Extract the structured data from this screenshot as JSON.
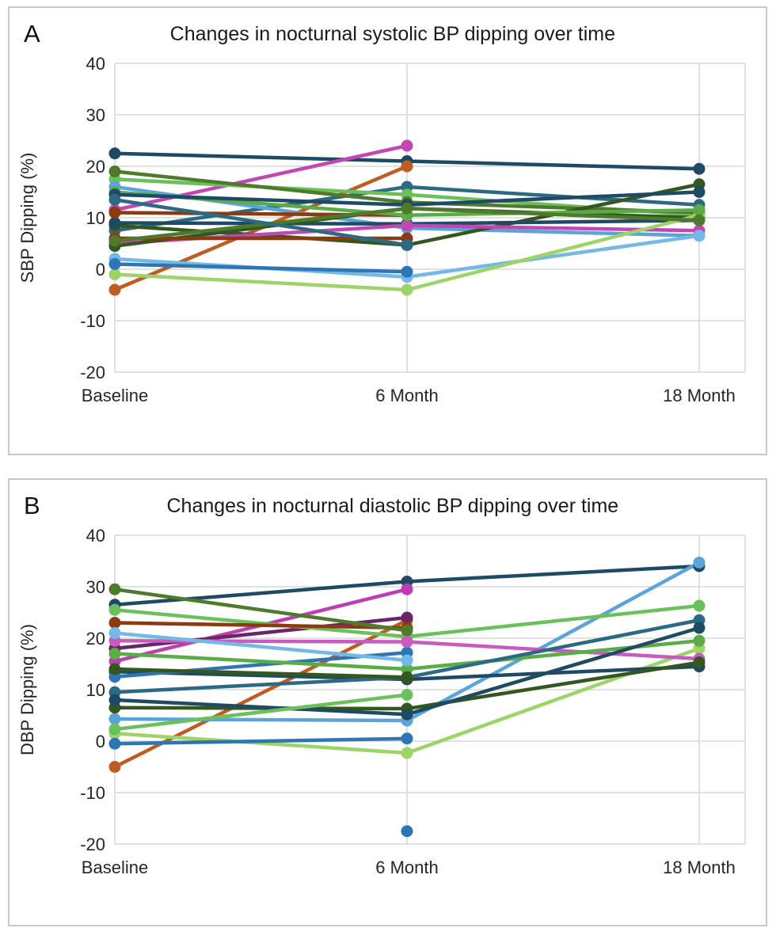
{
  "figure": {
    "background": "#ffffff",
    "panel_border_color": "#c9c9c9",
    "gridline_color": "#d9d9d9",
    "text_color": "#262626"
  },
  "chart_data": [
    {
      "type": "line",
      "panel_label": "A",
      "title": "Changes in nocturnal systolic BP dipping over time",
      "ylabel": "SBP Dipping (%)",
      "categories": [
        "Baseline",
        "6 Month",
        "18 Month"
      ],
      "yticks": [
        40,
        30,
        20,
        10,
        0,
        -10,
        -20
      ],
      "ylim": [
        -20,
        40
      ],
      "grid": true,
      "legend": "none",
      "marker": "circle",
      "series": [
        {
          "color": "#1f4a63",
          "values": [
            22.5,
            21,
            19.5
          ]
        },
        {
          "color": "#c247b5",
          "values": [
            11.5,
            24,
            null
          ]
        },
        {
          "color": "#c05b22",
          "values": [
            -4,
            20,
            null
          ]
        },
        {
          "color": "#2c6983",
          "values": [
            7.5,
            16,
            12.5
          ]
        },
        {
          "color": "#6cc05c",
          "values": [
            17.5,
            14.5,
            10.5
          ]
        },
        {
          "color": "#5ba4d9",
          "values": [
            16,
            8,
            6.5
          ]
        },
        {
          "color": "#4e7a2b",
          "values": [
            19,
            13,
            11
          ]
        },
        {
          "color": "#33571f",
          "values": [
            8.5,
            4.7,
            16.5
          ]
        },
        {
          "color": "#1f4a63",
          "values": [
            9,
            8.8,
            9.5
          ]
        },
        {
          "color": "#c247b5",
          "values": [
            5,
            8.5,
            7.5
          ]
        },
        {
          "color": "#33571f",
          "values": [
            4.5,
            11.8,
            10
          ]
        },
        {
          "color": "#74b9e6",
          "values": [
            2,
            -1.5,
            6.5
          ]
        },
        {
          "color": "#9ed36a",
          "values": [
            -1,
            -4,
            10.5
          ]
        },
        {
          "color": "#2e75b6",
          "values": [
            1,
            -0.5,
            null
          ]
        },
        {
          "color": "#8c3b10",
          "values": [
            11,
            10.5,
            null
          ]
        },
        {
          "color": "#8c3b10",
          "values": [
            6,
            6,
            null
          ]
        },
        {
          "color": "#5aac46",
          "values": [
            15,
            10.5,
            11.5
          ]
        },
        {
          "color": "#1f4a63",
          "values": [
            14.5,
            12.5,
            15
          ]
        },
        {
          "color": "#4e7a2b",
          "values": [
            5.5,
            11.8,
            9.5
          ]
        },
        {
          "color": "#2c6983",
          "values": [
            13.5,
            4.7,
            null
          ]
        }
      ]
    },
    {
      "type": "line",
      "panel_label": "B",
      "title": "Changes in nocturnal diastolic BP dipping over time",
      "ylabel": "DBP Dipping (%)",
      "categories": [
        "Baseline",
        "6 Month",
        "18 Month"
      ],
      "yticks": [
        40,
        30,
        20,
        10,
        0,
        -10,
        -20
      ],
      "ylim": [
        -20,
        40
      ],
      "grid": true,
      "legend": "none",
      "marker": "circle",
      "series": [
        {
          "color": "#1f4a63",
          "values": [
            26.5,
            31,
            34
          ]
        },
        {
          "color": "#c03cb3",
          "values": [
            15.5,
            29.5,
            null
          ]
        },
        {
          "color": "#c05b22",
          "values": [
            -5,
            23.5,
            null
          ]
        },
        {
          "color": "#6b2566",
          "values": [
            18,
            24,
            null
          ]
        },
        {
          "color": "#5ba4d9",
          "values": [
            4.3,
            4,
            34.7
          ]
        },
        {
          "color": "#6cc05c",
          "values": [
            25.5,
            20.3,
            26.3
          ]
        },
        {
          "color": "#9ed36a",
          "values": [
            1.5,
            -2.3,
            18
          ]
        },
        {
          "color": "#8c3b10",
          "values": [
            23,
            22,
            null
          ]
        },
        {
          "color": "#4e7a2b",
          "values": [
            29.5,
            21.5,
            null
          ]
        },
        {
          "color": "#1f4a63",
          "values": [
            13.5,
            12,
            14.5
          ]
        },
        {
          "color": "#2e75b6",
          "values": [
            12.5,
            17.2,
            null
          ]
        },
        {
          "color": "#2e75b6",
          "values": [
            null,
            -17.5,
            null
          ]
        },
        {
          "color": "#c85bc0",
          "values": [
            19.5,
            19.3,
            16
          ]
        },
        {
          "color": "#5aac46",
          "values": [
            17,
            14,
            19.5
          ]
        },
        {
          "color": "#33571f",
          "values": [
            6.5,
            6.3,
            15.3
          ]
        },
        {
          "color": "#74b9e6",
          "values": [
            21,
            15.7,
            null
          ]
        },
        {
          "color": "#2c6983",
          "values": [
            9.5,
            12.4,
            23.5
          ]
        },
        {
          "color": "#1f4a63",
          "values": [
            8,
            5.2,
            22
          ]
        },
        {
          "color": "#6cc05c",
          "values": [
            2.3,
            9,
            null
          ]
        },
        {
          "color": "#2e75b6",
          "values": [
            -0.5,
            0.5,
            null
          ]
        },
        {
          "color": "#33571f",
          "values": [
            14,
            12.4,
            null
          ]
        }
      ]
    }
  ]
}
